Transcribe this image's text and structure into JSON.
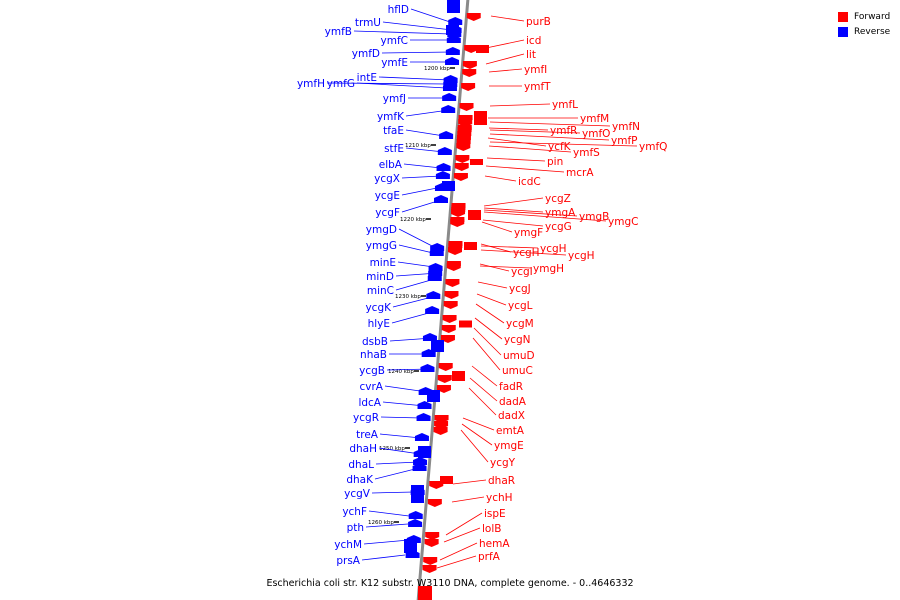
{
  "title": "Escherichia coli str. K12 substr. W3110 DNA, complete genome. - 0..4646332",
  "legend": [
    {
      "label": "Forward",
      "color": "#ff0000"
    },
    {
      "label": "Reverse",
      "color": "#0000ff"
    }
  ],
  "colors": {
    "forward": "#ff0000",
    "reverse": "#0000ff",
    "backbone": "#8a8a8a"
  },
  "kbp_marks": [
    "1200 kbp",
    "1210 kbp",
    "1220 kbp",
    "1230 kbp",
    "1240 kbp",
    "1250 kbp",
    "1260 kbp"
  ],
  "reverse_genes": [
    "hflD",
    "trmU",
    "ymfB",
    "ymfC",
    "ymfD",
    "ymfE",
    "intE",
    "ymfH",
    "ymfG",
    "ymfJ",
    "ymfK",
    "tfaE",
    "stfE",
    "elbA",
    "ycgX",
    "ycgE",
    "ycgF",
    "ymgD",
    "ymgG",
    "minE",
    "minD",
    "minC",
    "ycgK",
    "hlyE",
    "dsbB",
    "nhaB",
    "ycgB",
    "cvrA",
    "ldcA",
    "ycgR",
    "treA",
    "dhaH",
    "dhaL",
    "dhaK",
    "ycgV",
    "ychF",
    "pth",
    "ychM",
    "prsA"
  ],
  "forward_genes": [
    "purB",
    "icd",
    "lit",
    "ymfI",
    "ymfT",
    "ymfL",
    "ymfM",
    "ymfN",
    "ymfR",
    "ymfO",
    "ymfP",
    "ycfK",
    "ymfQ",
    "ymfS",
    "pin",
    "mcrA",
    "icdC",
    "ycgZ",
    "ymgA",
    "ymgB",
    "ymgC",
    "ycgG",
    "ymgF",
    "ycgH",
    "ycgH",
    "ycgH",
    "ycgI",
    "ymgH",
    "ycgJ",
    "ycgL",
    "ycgM",
    "ycgN",
    "umuD",
    "umuC",
    "fadR",
    "dadA",
    "dadX",
    "emtA",
    "ymgE",
    "ycgY",
    "dhaR",
    "ychH",
    "ispE",
    "lolB",
    "hemA",
    "prfA"
  ]
}
